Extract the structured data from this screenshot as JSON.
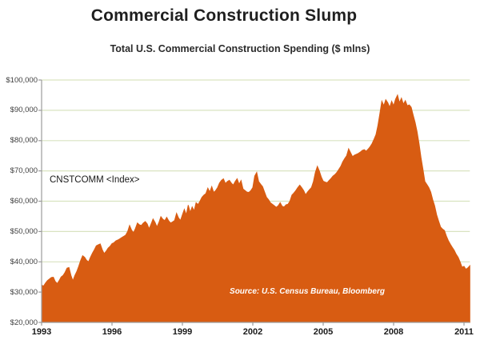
{
  "header": {
    "title": "Commercial Construction Slump",
    "subtitle": "Total U.S. Commercial Construction Spending ($ mlns)"
  },
  "chart_data": {
    "type": "area",
    "title": "Total U.S. Commercial Construction Spending ($ mlns)",
    "series_label": "CNSTCOMM <Index>",
    "source_note": "Source:  U.S. Census Bureau, Bloomberg",
    "unit": "$ mlns",
    "grid": "horizontal",
    "legend": "none",
    "x_start_year": 1993,
    "points_per_year": 12,
    "xlim": [
      1993,
      2011.25
    ],
    "ylim": [
      20000,
      100000
    ],
    "x_tick_labels": [
      "1993",
      "1996",
      "1999",
      "2002",
      "2005",
      "2008",
      "2011"
    ],
    "y_tick_values": [
      100000,
      90000,
      80000,
      70000,
      60000,
      50000,
      40000,
      30000,
      20000
    ],
    "y_tick_labels": [
      "$100,000",
      "$90,000",
      "$80,000",
      "$70,000",
      "$60,000",
      "$50,000",
      "$40,000",
      "$30,000",
      "$20,000"
    ],
    "colors": {
      "fill": "#D85C12",
      "gridline": "#D9E3C0",
      "axis": "#9C9C9C"
    },
    "values": [
      32300,
      32000,
      33000,
      33800,
      34300,
      34800,
      34900,
      33500,
      32800,
      33800,
      35000,
      35500,
      36500,
      37900,
      38100,
      35500,
      33700,
      35500,
      36800,
      38500,
      40500,
      42000,
      41500,
      40500,
      40000,
      41500,
      42900,
      44000,
      45300,
      45600,
      45900,
      44000,
      42700,
      43500,
      44500,
      45100,
      46000,
      46300,
      46900,
      47200,
      47600,
      48000,
      48400,
      48800,
      50000,
      52000,
      50500,
      49600,
      51000,
      52800,
      52200,
      52000,
      52800,
      53300,
      52500,
      50900,
      52500,
      54100,
      53000,
      51500,
      53000,
      54900,
      54000,
      53600,
      54700,
      53500,
      52800,
      53200,
      53600,
      56000,
      54500,
      53600,
      55500,
      57300,
      55500,
      58700,
      56300,
      58100,
      56800,
      59500,
      58900,
      60000,
      61300,
      62000,
      62500,
      64300,
      63000,
      64800,
      62900,
      63500,
      64500,
      66000,
      66900,
      67400,
      65800,
      66500,
      66900,
      66000,
      65300,
      66500,
      67400,
      65600,
      66800,
      64000,
      63500,
      63000,
      62900,
      63500,
      64500,
      68300,
      69500,
      66500,
      65600,
      64800,
      63000,
      61300,
      60500,
      59500,
      59000,
      58500,
      58000,
      58500,
      59500,
      58300,
      58100,
      58800,
      59000,
      60000,
      62000,
      62700,
      63500,
      64500,
      65300,
      64500,
      63500,
      62100,
      63000,
      63800,
      64500,
      66500,
      69500,
      71500,
      70000,
      68000,
      66600,
      66300,
      66100,
      66800,
      67500,
      68300,
      68800,
      69500,
      70500,
      71500,
      73000,
      74100,
      75000,
      77300,
      76000,
      74700,
      75200,
      75500,
      75800,
      76200,
      76800,
      77000,
      76500,
      77200,
      78000,
      79000,
      80500,
      82000,
      85000,
      89000,
      93000,
      91500,
      93500,
      92500,
      91000,
      93000,
      91500,
      93600,
      95000,
      92500,
      94000,
      92000,
      93200,
      91500,
      91800,
      91000,
      88500,
      86000,
      83000,
      79000,
      74500,
      70500,
      66500,
      65500,
      64500,
      63000,
      60500,
      58500,
      55500,
      53500,
      51500,
      50800,
      50300,
      48500,
      47000,
      45800,
      44800,
      43800,
      42500,
      41500,
      40000,
      38200,
      38500,
      37500,
      38000,
      38700
    ]
  }
}
